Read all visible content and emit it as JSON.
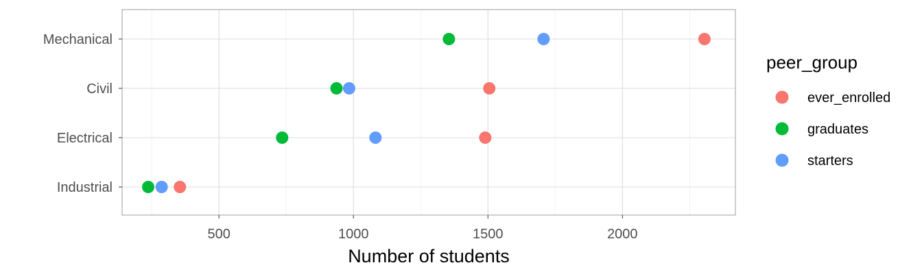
{
  "chart_data": {
    "type": "scatter",
    "title": "",
    "xlabel": "Number of students",
    "ylabel": "",
    "xlim": [
      140,
      2420
    ],
    "x_ticks": [
      500,
      1000,
      1500,
      2000
    ],
    "x_tick_labels": [
      "500",
      "1000",
      "1500",
      "2000"
    ],
    "categories": [
      "Industrial",
      "Electrical",
      "Civil",
      "Mechanical"
    ],
    "legend_title": "peer_group",
    "legend_position": "right",
    "grid": true,
    "series": [
      {
        "name": "ever_enrolled",
        "color": "#F8766D",
        "values": [
          355,
          1490,
          1505,
          2305
        ]
      },
      {
        "name": "graduates",
        "color": "#00BA38",
        "values": [
          237,
          735,
          937,
          1355
        ]
      },
      {
        "name": "starters",
        "color": "#619CFF",
        "values": [
          287,
          1082,
          984,
          1707
        ]
      }
    ]
  }
}
